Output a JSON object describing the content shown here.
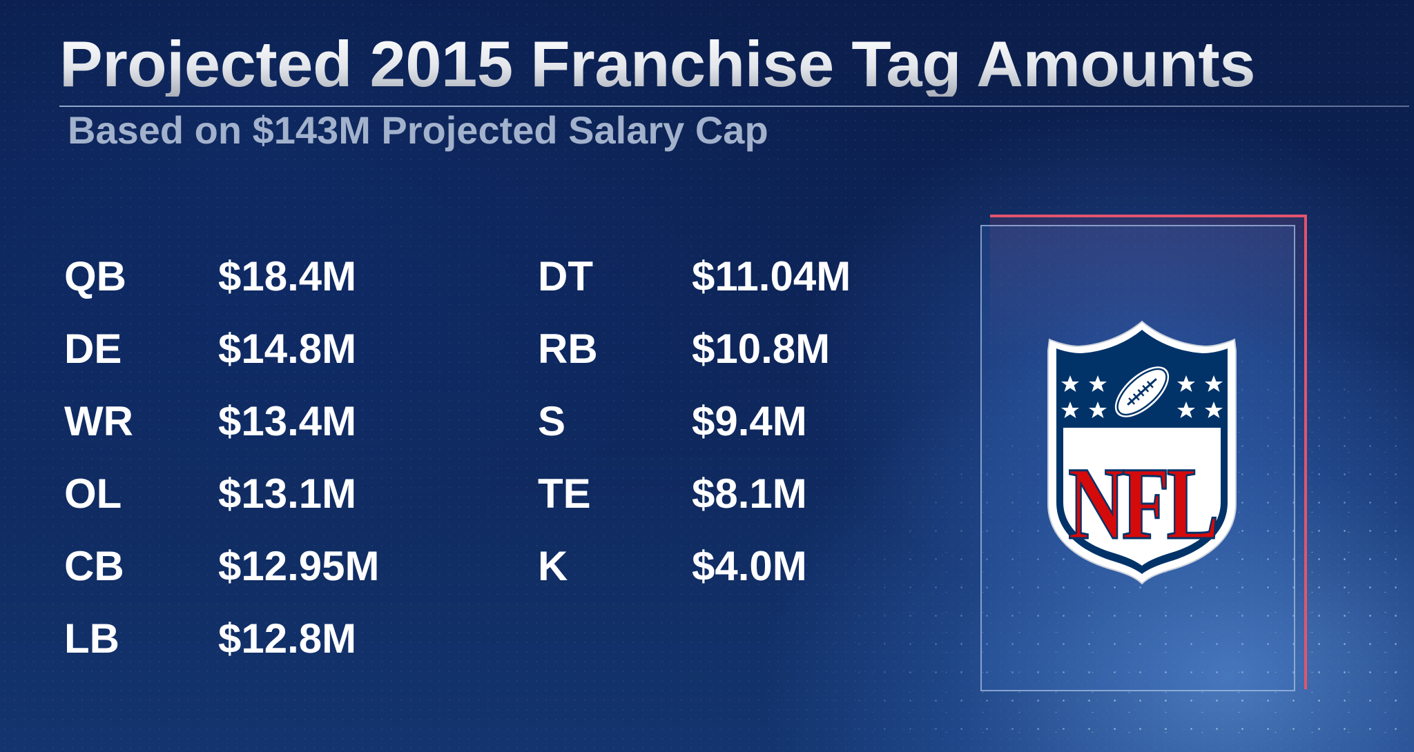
{
  "title": "Projected 2015 Franchise Tag Amounts",
  "subtitle": "Based on $143M Projected Salary Cap",
  "left_column": [
    {
      "position": "QB",
      "amount": "$18.4M"
    },
    {
      "position": "DE",
      "amount": "$14.8M"
    },
    {
      "position": "WR",
      "amount": "$13.4M"
    },
    {
      "position": "OL",
      "amount": "$13.1M"
    },
    {
      "position": "CB",
      "amount": "$12.95M"
    },
    {
      "position": "LB",
      "amount": "$12.8M"
    }
  ],
  "right_column": [
    {
      "position": "DT",
      "amount": "$11.04M"
    },
    {
      "position": "RB",
      "amount": "$10.8M"
    },
    {
      "position": "S",
      "amount": "$9.4M"
    },
    {
      "position": "TE",
      "amount": "$8.1M"
    },
    {
      "position": "K",
      "amount": "$4.0M"
    }
  ],
  "logo": {
    "icon": "nfl-shield-logo",
    "lettering": "NFL"
  },
  "colors": {
    "background": "#11306f",
    "text": "#ffffff",
    "subtitle": "#a3b2cc",
    "accent_frame": "#e3546e",
    "nfl_blue": "#013369",
    "nfl_red": "#d50a0a"
  }
}
